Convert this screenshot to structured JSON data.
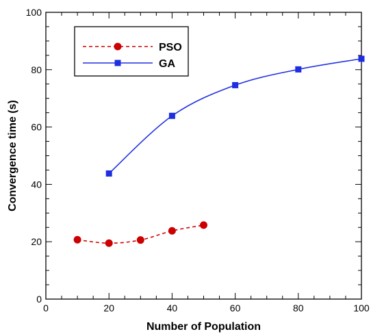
{
  "chart_data": {
    "type": "line",
    "xlabel": "Number of Population",
    "ylabel": "Convergence time  (s)",
    "xlim": [
      0,
      100
    ],
    "ylim": [
      0,
      100
    ],
    "xticks": [
      0,
      20,
      40,
      60,
      80,
      100
    ],
    "yticks": [
      0,
      20,
      40,
      60,
      80,
      100
    ],
    "legend_position": "top-left",
    "grid": false,
    "series": [
      {
        "name": "PSO",
        "color": "#cc0000",
        "marker": "circle",
        "line_style": "dashed",
        "x": [
          10,
          20,
          30,
          40,
          50
        ],
        "y": [
          20.7,
          19.5,
          20.6,
          23.8,
          25.8
        ]
      },
      {
        "name": "GA",
        "color": "#1f2fe0",
        "marker": "square",
        "line_style": "solid",
        "x": [
          20,
          40,
          60,
          80,
          100
        ],
        "y": [
          43.8,
          63.9,
          74.6,
          80.1,
          83.8
        ]
      }
    ]
  }
}
